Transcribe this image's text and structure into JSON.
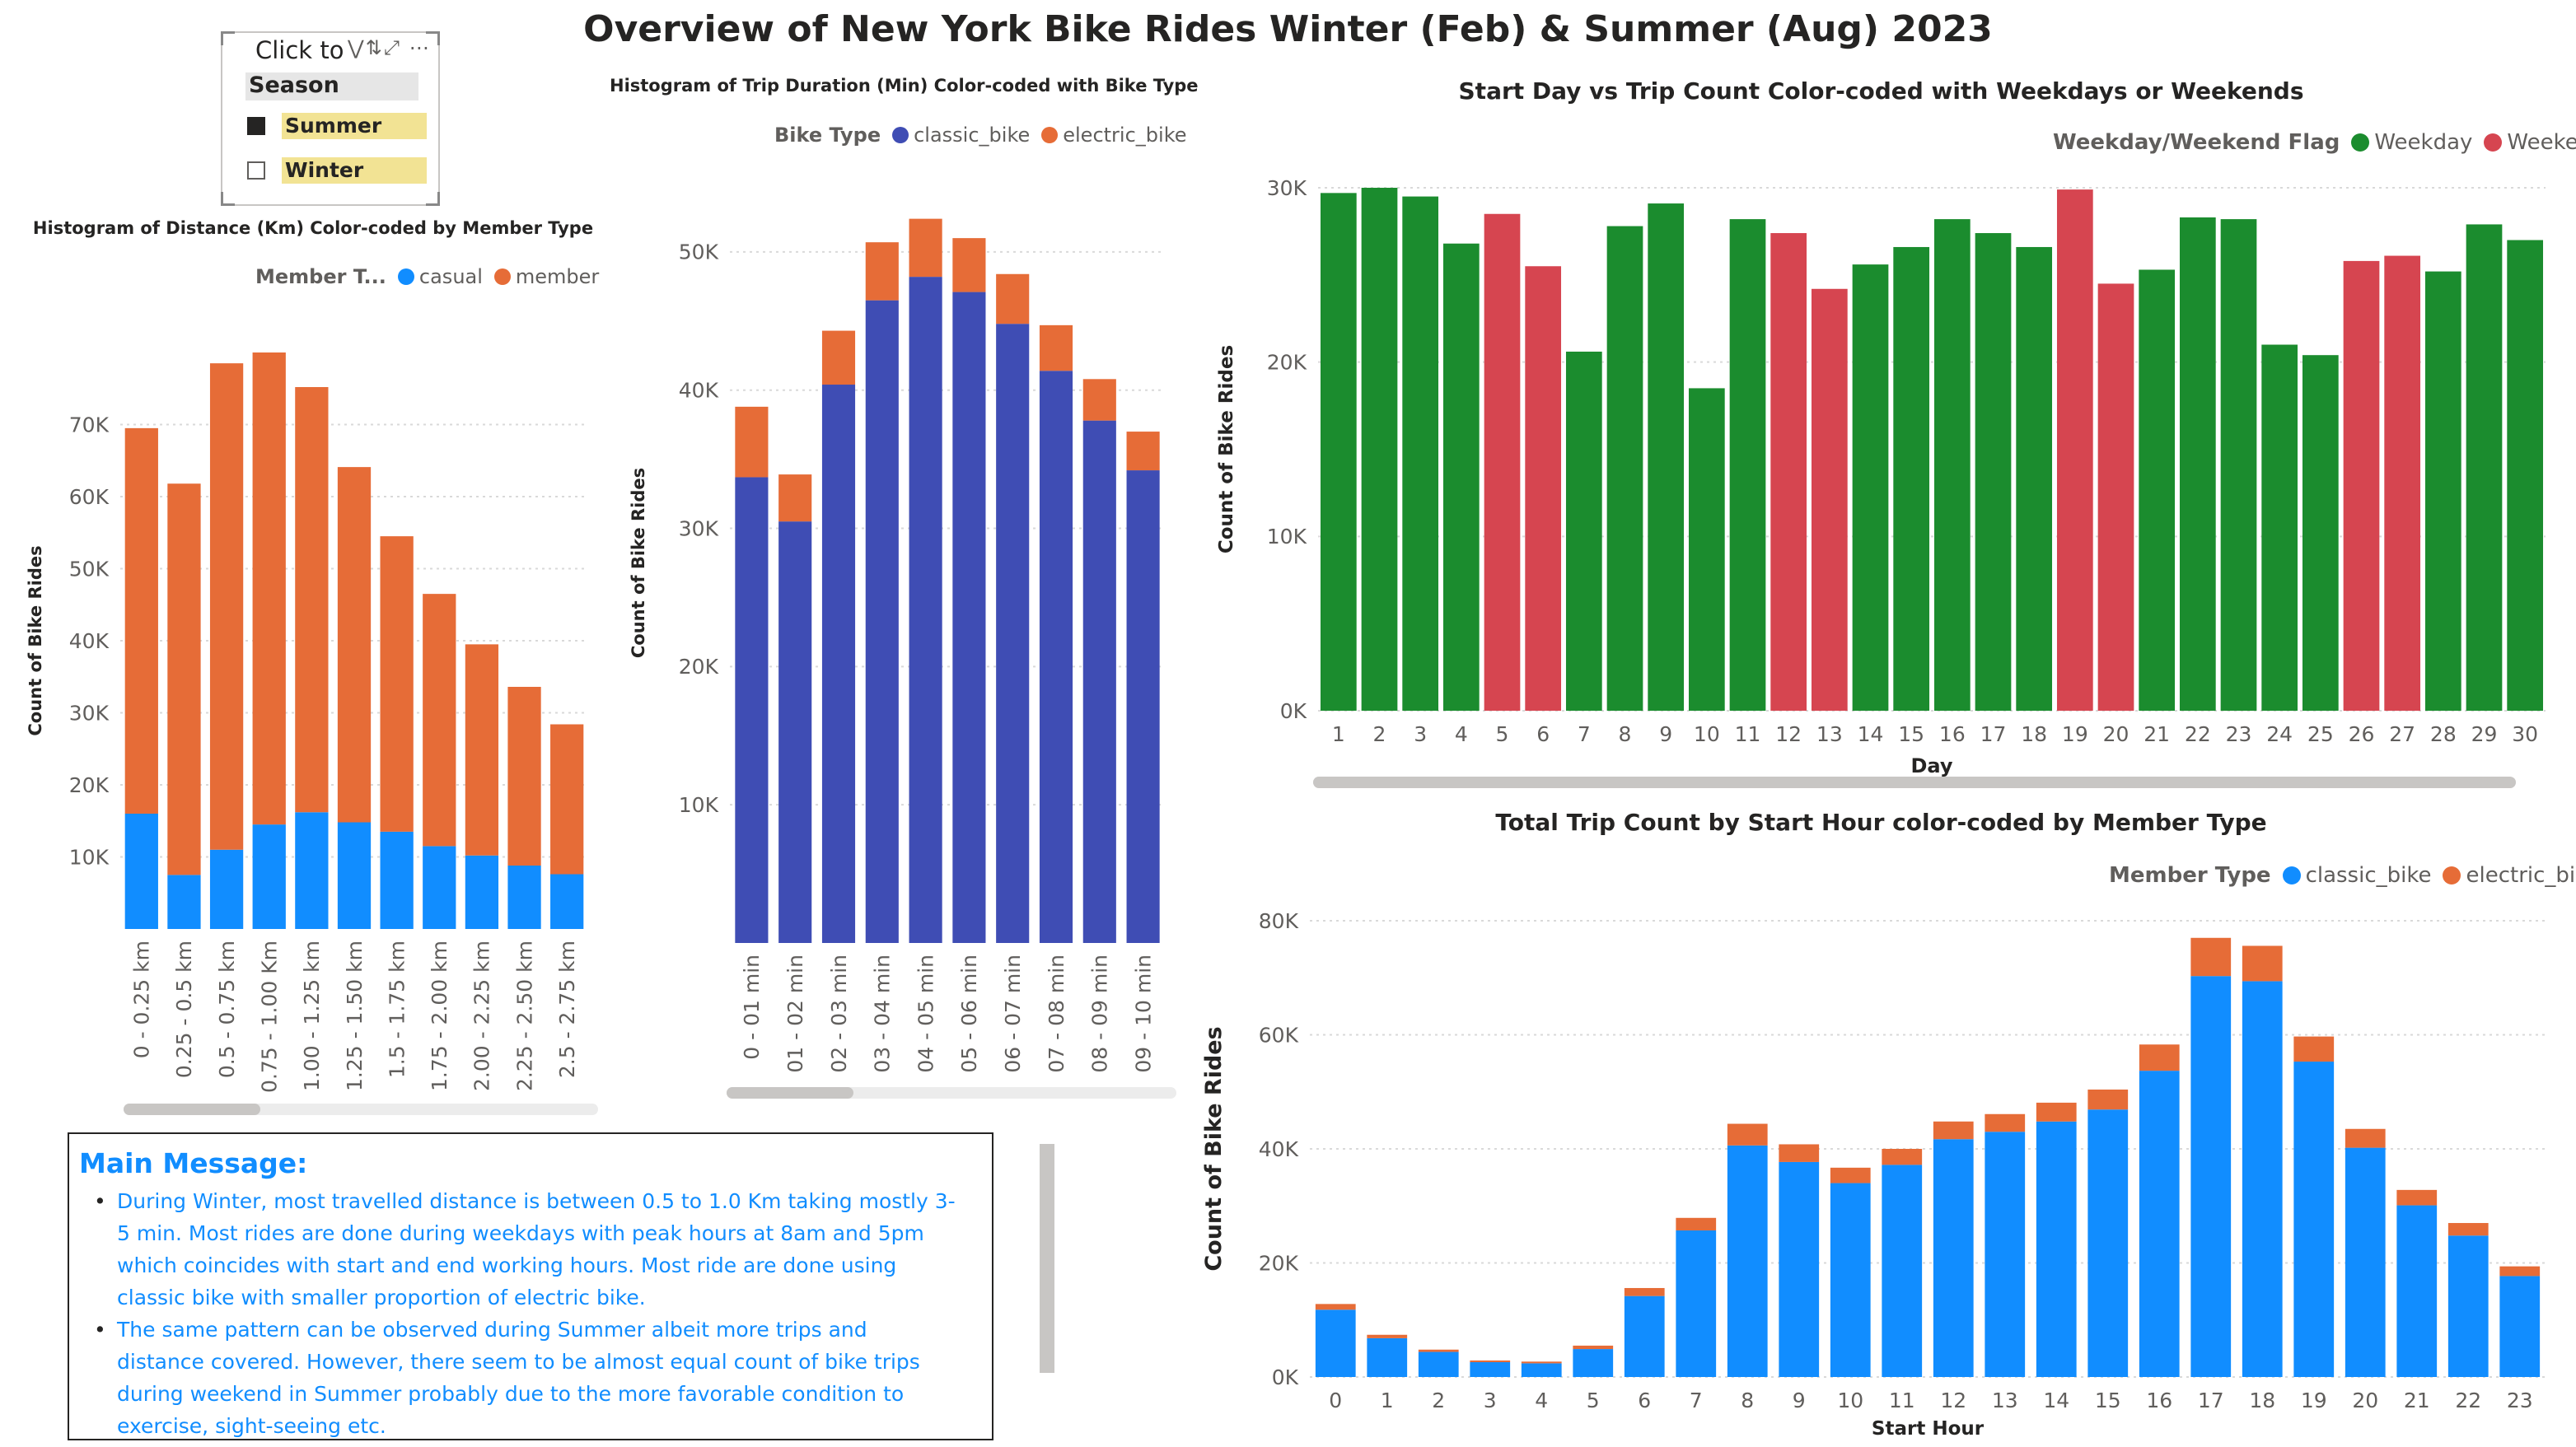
{
  "page_title": "Overview of New York Bike Rides Winter (Feb) & Summer (Aug) 2023",
  "slicer": {
    "header": "Click to",
    "tools": "⋁⇅⤢ ⋯",
    "field": "Season",
    "items": [
      {
        "label": "Summer",
        "checked": true
      },
      {
        "label": "Winter",
        "checked": false
      }
    ]
  },
  "colors": {
    "casual": "#118dff",
    "member": "#e66c37",
    "classic_bike_dark": "#3f4db4",
    "electric_bike": "#e66c37",
    "weekday": "#1b8c2e",
    "weekend": "#d64550",
    "classic_bike_hour": "#118dff"
  },
  "message": {
    "title": "Main Message:",
    "bullets": [
      "During Winter, most travelled distance is between 0.5 to 1.0 Km taking mostly 3-5 min. Most rides are done during weekdays with peak hours at 8am and 5pm which coincides with start and end working hours.  Most ride are done using classic bike with smaller proportion of electric bike.",
      "The same pattern can be observed during Summer albeit more trips and distance covered. However, there seem to be almost equal count of bike trips during weekend in Summer probably due to the more favorable condition to exercise, sight-seeing etc."
    ]
  },
  "chart_data": [
    {
      "id": "distance",
      "type": "bar",
      "stacked": true,
      "title": "Histogram of Distance (Km) Color-coded by Member Type",
      "legend_title": "Member T...",
      "ylabel": "Count of Bike Rides",
      "xlabel": "",
      "ylim": [
        0,
        80000
      ],
      "yticks": [
        10000,
        20000,
        30000,
        40000,
        50000,
        60000,
        70000
      ],
      "ytick_labels": [
        "10K",
        "20K",
        "30K",
        "40K",
        "50K",
        "60K",
        "70K"
      ],
      "grid": true,
      "legend_position": "top-right",
      "categories": [
        "0 - 0.25 km",
        "0.25 - 0.5 km",
        "0.5 - 0.75 km",
        "0.75 - 1.00 Km",
        "1.00 - 1.25 km",
        "1.25 - 1.50 km",
        "1.5 - 1.75 km",
        "1.75 - 2.00 km",
        "2.00 - 2.25 km",
        "2.25 - 2.50 km",
        "2.5 - 2.75 km"
      ],
      "series": [
        {
          "name": "casual",
          "color": "#118dff",
          "values": [
            16000,
            7500,
            11000,
            14500,
            16200,
            14800,
            13500,
            11500,
            10200,
            8800,
            7600
          ]
        },
        {
          "name": "member",
          "color": "#e66c37",
          "values": [
            53500,
            54300,
            67500,
            65500,
            59000,
            49300,
            41000,
            35000,
            29300,
            24800,
            20800
          ]
        }
      ]
    },
    {
      "id": "duration",
      "type": "bar",
      "stacked": true,
      "title": "Histogram of Trip Duration (Min) Color-coded with Bike Type",
      "legend_title": "Bike Type",
      "ylabel": "Count of Bike Rides",
      "xlabel": "",
      "ylim": [
        0,
        55000
      ],
      "yticks": [
        10000,
        20000,
        30000,
        40000,
        50000
      ],
      "ytick_labels": [
        "10K",
        "20K",
        "30K",
        "40K",
        "50K"
      ],
      "grid": true,
      "legend_position": "top-right",
      "categories": [
        "0 - 01 min",
        "01 - 02 min",
        "02 - 03 min",
        "03 - 04 min",
        "04 - 05 min",
        "05 - 06 min",
        "06 - 07 min",
        "07 - 08 min",
        "08 - 09 min",
        "09 - 10 min"
      ],
      "series": [
        {
          "name": "classic_bike",
          "color": "#3f4db4",
          "values": [
            33700,
            30500,
            40400,
            46500,
            48200,
            47100,
            44800,
            41400,
            37800,
            34200
          ]
        },
        {
          "name": "electric_bike",
          "color": "#e66c37",
          "values": [
            5100,
            3400,
            3900,
            4200,
            4200,
            3900,
            3600,
            3300,
            3000,
            2800
          ]
        }
      ]
    },
    {
      "id": "startday",
      "type": "bar",
      "title": "Start Day vs Trip Count Color-coded with Weekdays or Weekends",
      "legend_title": "Weekday/Weekend Flag",
      "ylabel": "Count of Bike Rides",
      "xlabel": "Day",
      "ylim": [
        0,
        30000
      ],
      "yticks": [
        0,
        10000,
        20000,
        30000
      ],
      "ytick_labels": [
        "0K",
        "10K",
        "20K",
        "30K"
      ],
      "grid": true,
      "legend_position": "top-right",
      "legend": [
        {
          "name": "Weekday",
          "color": "#1b8c2e"
        },
        {
          "name": "Weekend",
          "color": "#d64550"
        }
      ],
      "categories": [
        "1",
        "2",
        "3",
        "4",
        "5",
        "6",
        "7",
        "8",
        "9",
        "10",
        "11",
        "12",
        "13",
        "14",
        "15",
        "16",
        "17",
        "18",
        "19",
        "20",
        "21",
        "22",
        "23",
        "24",
        "25",
        "26",
        "27",
        "28",
        "29",
        "30"
      ],
      "values": [
        29700,
        30000,
        29500,
        26800,
        28500,
        25500,
        20600,
        27800,
        29100,
        18500,
        28200,
        27400,
        24200,
        25600,
        26600,
        28200,
        27400,
        26600,
        29900,
        24500,
        25300,
        28300,
        28200,
        21000,
        20400,
        25800,
        26100,
        25200,
        27900,
        27000
      ],
      "flags": [
        "Weekday",
        "Weekday",
        "Weekday",
        "Weekday",
        "Weekend",
        "Weekend",
        "Weekday",
        "Weekday",
        "Weekday",
        "Weekday",
        "Weekday",
        "Weekend",
        "Weekend",
        "Weekday",
        "Weekday",
        "Weekday",
        "Weekday",
        "Weekday",
        "Weekend",
        "Weekend",
        "Weekday",
        "Weekday",
        "Weekday",
        "Weekday",
        "Weekday",
        "Weekend",
        "Weekend",
        "Weekday",
        "Weekday",
        "Weekday"
      ]
    },
    {
      "id": "starthour",
      "type": "bar",
      "stacked": true,
      "title": "Total Trip Count by Start Hour color-coded by Member Type",
      "legend_title": "Member Type",
      "ylabel": "Count of Bike Rides",
      "xlabel": "Start Hour",
      "ylim": [
        0,
        80000
      ],
      "yticks": [
        0,
        20000,
        40000,
        60000,
        80000
      ],
      "ytick_labels": [
        "0K",
        "20K",
        "40K",
        "60K",
        "80K"
      ],
      "grid": true,
      "legend_position": "top-right",
      "categories": [
        "0",
        "1",
        "2",
        "3",
        "4",
        "5",
        "6",
        "7",
        "8",
        "9",
        "10",
        "11",
        "12",
        "13",
        "14",
        "15",
        "16",
        "17",
        "18",
        "19",
        "20",
        "21",
        "22",
        "23"
      ],
      "series": [
        {
          "name": "classic_bike",
          "color": "#118dff",
          "values": [
            11800,
            6800,
            4400,
            2600,
            2400,
            4900,
            14200,
            25700,
            40600,
            37700,
            34000,
            37200,
            41700,
            43000,
            44800,
            46900,
            53700,
            70300,
            69400,
            55300,
            40200,
            30100,
            24800,
            17700
          ]
        },
        {
          "name": "electric_bike",
          "color": "#e66c37",
          "values": [
            1000,
            600,
            400,
            300,
            300,
            600,
            1400,
            2200,
            3800,
            3100,
            2700,
            2800,
            3100,
            3100,
            3300,
            3500,
            4600,
            6700,
            6200,
            4400,
            3300,
            2700,
            2200,
            1700
          ]
        }
      ]
    }
  ]
}
